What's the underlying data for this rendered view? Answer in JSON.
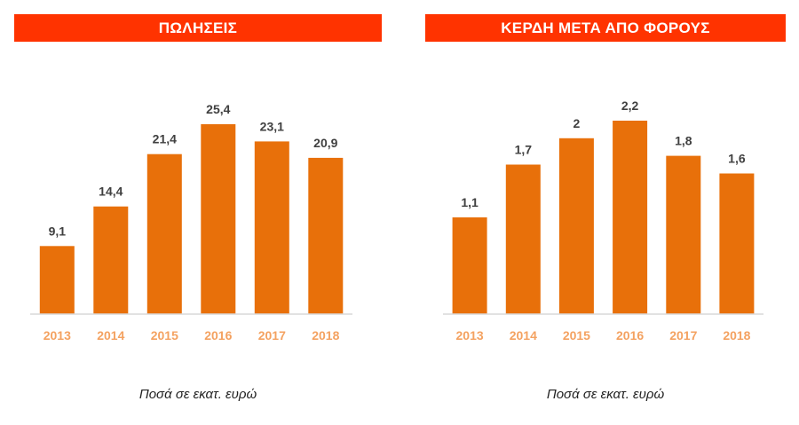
{
  "chart_data": [
    {
      "type": "bar",
      "title": "ΠΩΛΗΣΕΙΣ",
      "categories": [
        "2013",
        "2014",
        "2015",
        "2016",
        "2017",
        "2018"
      ],
      "values": [
        9.1,
        14.4,
        21.4,
        25.4,
        23.1,
        20.9
      ],
      "value_labels": [
        "9,1",
        "14,4",
        "21,4",
        "25,4",
        "23,1",
        "20,9"
      ],
      "ylim": [
        0,
        28
      ],
      "grid": false,
      "xlabel": "",
      "ylabel": "",
      "caption": "Ποσά σε εκατ. ευρώ",
      "colors": {
        "bar": "#e8700a",
        "title_bg": "#ff3300",
        "tick": "#f4a261",
        "value": "#404040"
      }
    },
    {
      "type": "bar",
      "title": "ΚΕΡΔΗ ΜΕΤΑ ΑΠΟ ΦΟΡΟΥΣ",
      "categories": [
        "2013",
        "2014",
        "2015",
        "2016",
        "2017",
        "2018"
      ],
      "values": [
        1.1,
        1.7,
        2.0,
        2.2,
        1.8,
        1.6
      ],
      "value_labels": [
        "1,1",
        "1,7",
        "2",
        "2,2",
        "1,8",
        "1,6"
      ],
      "ylim": [
        0,
        2.7
      ],
      "grid": false,
      "xlabel": "",
      "ylabel": "",
      "caption": "Ποσά σε εκατ. ευρώ",
      "colors": {
        "bar": "#e8700a",
        "title_bg": "#ff3300",
        "tick": "#f4a261",
        "value": "#404040"
      }
    }
  ]
}
